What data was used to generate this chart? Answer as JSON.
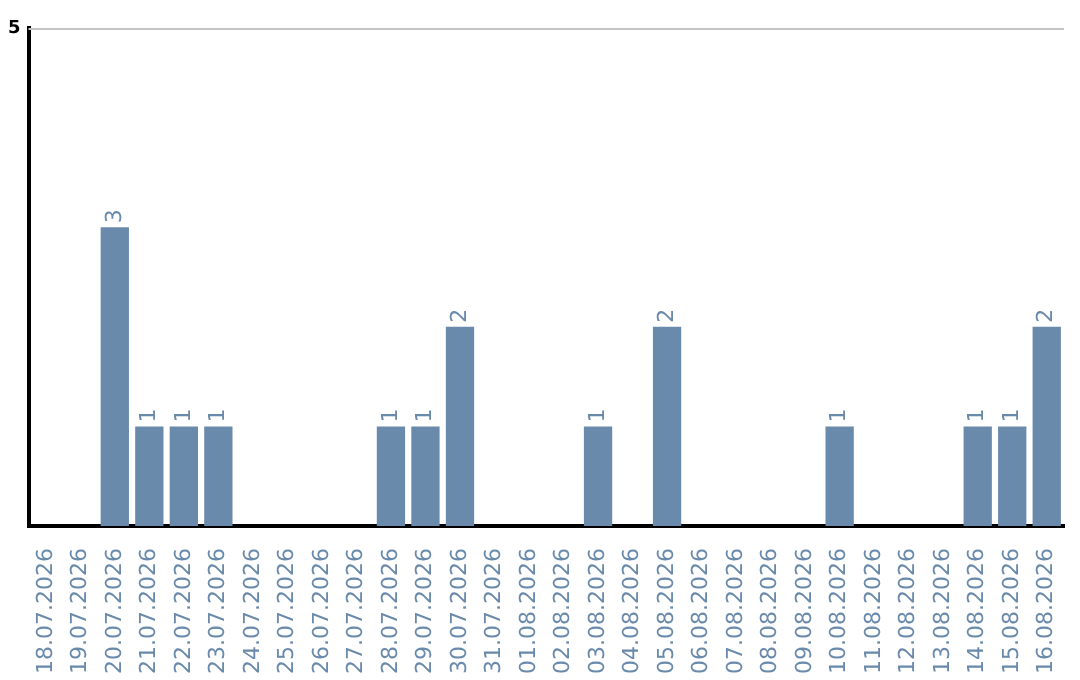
{
  "chart_data": {
    "type": "bar",
    "categories": [
      "18.07.2026",
      "19.07.2026",
      "20.07.2026",
      "21.07.2026",
      "22.07.2026",
      "23.07.2026",
      "24.07.2026",
      "25.07.2026",
      "26.07.2026",
      "27.07.2026",
      "28.07.2026",
      "29.07.2026",
      "30.07.2026",
      "31.07.2026",
      "01.08.2026",
      "02.08.2026",
      "03.08.2026",
      "04.08.2026",
      "05.08.2026",
      "06.08.2026",
      "07.08.2026",
      "08.08.2026",
      "09.08.2026",
      "10.08.2026",
      "11.08.2026",
      "12.08.2026",
      "13.08.2026",
      "14.08.2026",
      "15.08.2026",
      "16.08.2026"
    ],
    "values": [
      0,
      0,
      3,
      1,
      1,
      1,
      0,
      0,
      0,
      0,
      1,
      1,
      2,
      0,
      0,
      0,
      1,
      0,
      2,
      0,
      0,
      0,
      0,
      1,
      0,
      0,
      0,
      1,
      1,
      2
    ],
    "value_labels": [
      null,
      null,
      "3",
      "1",
      "1",
      "1",
      null,
      null,
      null,
      null,
      "1",
      "1",
      "2",
      null,
      null,
      null,
      "1",
      null,
      "2",
      null,
      null,
      null,
      null,
      "1",
      null,
      null,
      null,
      "1",
      "1",
      "2"
    ],
    "color": "#6a8aab",
    "ylim": [
      0,
      5
    ],
    "yticks": [
      5
    ],
    "legend": false
  }
}
